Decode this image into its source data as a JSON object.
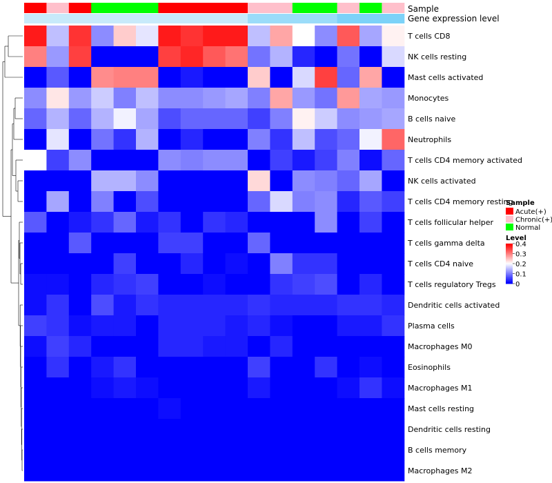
{
  "chart_data": {
    "type": "heatmap",
    "title": "",
    "annotation_labels": {
      "sample": "Sample",
      "expression": "Gene expression level"
    },
    "column_samples": [
      "Acute(+)",
      "Chronic(+)",
      "Acute(+)",
      "Normal",
      "Normal",
      "Normal",
      "Acute(+)",
      "Acute(+)",
      "Acute(+)",
      "Acute(+)",
      "Chronic(+)",
      "Chronic(+)",
      "Normal",
      "Normal",
      "Chronic(+)",
      "Normal",
      "Chronic(+)"
    ],
    "column_expression": [
      0.2,
      0.2,
      0.2,
      0.2,
      0.2,
      0.2,
      0.2,
      0.2,
      0.2,
      0.2,
      0.5,
      0.5,
      0.5,
      0.5,
      0.7,
      0.7,
      0.7
    ],
    "rows": [
      "T cells CD8",
      "NK cells resting",
      "Mast cells activated",
      "Monocytes",
      "B cells naive",
      "Neutrophils",
      "T cells CD4 memory activated",
      "NK cells activated",
      "T cells CD4 memory resting",
      "T cells follicular helper",
      "T cells gamma delta",
      "T cells CD4 naive",
      "T cells regulatory  Tregs",
      "Dendritic cells activated",
      "Plasma cells",
      "Macrophages M0",
      "Eosinophils",
      "Macrophages M1",
      "Mast cells resting",
      "Dendritic cells resting",
      "B cells memory",
      "Macrophages M2"
    ],
    "values": [
      [
        0.38,
        0.15,
        0.36,
        0.11,
        0.24,
        0.18,
        0.38,
        0.36,
        0.38,
        0.38,
        0.15,
        0.27,
        0.2,
        0.11,
        0.33,
        0.13,
        0.21
      ],
      [
        0.3,
        0.12,
        0.35,
        0.0,
        0.0,
        0.0,
        0.35,
        0.37,
        0.33,
        0.31,
        0.09,
        0.14,
        0.03,
        0.0,
        0.09,
        0.0,
        0.17
      ],
      [
        0.0,
        0.07,
        0.0,
        0.29,
        0.3,
        0.3,
        0.0,
        0.02,
        0.0,
        0.0,
        0.24,
        0.0,
        0.17,
        0.35,
        0.08,
        0.27,
        0.0
      ],
      [
        0.11,
        0.22,
        0.12,
        0.16,
        0.1,
        0.15,
        0.11,
        0.11,
        0.12,
        0.13,
        0.1,
        0.27,
        0.12,
        0.09,
        0.28,
        0.13,
        0.12
      ],
      [
        0.08,
        0.14,
        0.08,
        0.14,
        0.19,
        0.13,
        0.06,
        0.08,
        0.08,
        0.08,
        0.05,
        0.1,
        0.21,
        0.16,
        0.11,
        0.12,
        0.13
      ],
      [
        0.0,
        0.18,
        0.0,
        0.09,
        0.04,
        0.14,
        0.0,
        0.03,
        0.0,
        0.0,
        0.1,
        0.04,
        0.15,
        0.06,
        0.08,
        0.19,
        0.32
      ],
      [
        0.2,
        0.05,
        0.11,
        0.0,
        0.0,
        0.0,
        0.11,
        0.1,
        0.11,
        0.11,
        0.0,
        0.05,
        0.02,
        0.05,
        0.1,
        0.01,
        0.08
      ],
      [
        0.0,
        0.0,
        0.0,
        0.14,
        0.14,
        0.11,
        0.0,
        0.0,
        0.0,
        0.0,
        0.23,
        0.0,
        0.11,
        0.1,
        0.08,
        0.13,
        0.0
      ],
      [
        0.0,
        0.13,
        0.0,
        0.1,
        0.0,
        0.06,
        0.0,
        0.0,
        0.0,
        0.0,
        0.08,
        0.17,
        0.1,
        0.11,
        0.03,
        0.07,
        0.05
      ],
      [
        0.07,
        0.0,
        0.02,
        0.04,
        0.08,
        0.02,
        0.04,
        0.0,
        0.04,
        0.03,
        0.0,
        0.0,
        0.0,
        0.11,
        0.0,
        0.05,
        0.0
      ],
      [
        0.0,
        0.0,
        0.07,
        0.0,
        0.0,
        0.0,
        0.05,
        0.05,
        0.0,
        0.0,
        0.08,
        0.0,
        0.0,
        0.0,
        0.0,
        0.0,
        0.0
      ],
      [
        0.0,
        0.0,
        0.0,
        0.0,
        0.05,
        0.0,
        0.0,
        0.03,
        0.0,
        0.01,
        0.0,
        0.1,
        0.04,
        0.04,
        0.0,
        0.0,
        0.0
      ],
      [
        0.01,
        0.01,
        0.0,
        0.03,
        0.04,
        0.05,
        0.0,
        0.0,
        0.01,
        0.0,
        0.0,
        0.04,
        0.05,
        0.06,
        0.0,
        0.03,
        0.0
      ],
      [
        0.01,
        0.04,
        0.0,
        0.06,
        0.02,
        0.04,
        0.03,
        0.03,
        0.03,
        0.03,
        0.04,
        0.03,
        0.03,
        0.03,
        0.04,
        0.04,
        0.03
      ],
      [
        0.05,
        0.04,
        0.01,
        0.02,
        0.02,
        0.0,
        0.03,
        0.03,
        0.03,
        0.02,
        0.03,
        0.01,
        0.0,
        0.0,
        0.02,
        0.02,
        0.04
      ],
      [
        0.01,
        0.05,
        0.03,
        0.0,
        0.0,
        0.0,
        0.03,
        0.03,
        0.02,
        0.02,
        0.0,
        0.03,
        0.0,
        0.0,
        0.0,
        0.0,
        0.0
      ],
      [
        0.0,
        0.04,
        0.0,
        0.02,
        0.04,
        0.0,
        0.0,
        0.0,
        0.0,
        0.0,
        0.05,
        0.0,
        0.0,
        0.04,
        0.0,
        0.01,
        0.0
      ],
      [
        0.0,
        0.0,
        0.0,
        0.01,
        0.02,
        0.01,
        0.0,
        0.0,
        0.0,
        0.0,
        0.02,
        0.0,
        0.0,
        0.0,
        0.01,
        0.04,
        0.01
      ],
      [
        0.0,
        0.0,
        0.0,
        0.0,
        0.0,
        0.0,
        0.01,
        0.0,
        0.0,
        0.0,
        0.0,
        0.0,
        0.0,
        0.0,
        0.0,
        0.0,
        0.0
      ],
      [
        0.0,
        0.0,
        0.0,
        0.0,
        0.0,
        0.0,
        0.0,
        0.0,
        0.0,
        0.0,
        0.0,
        0.0,
        0.0,
        0.0,
        0.0,
        0.0,
        0.0
      ],
      [
        0.0,
        0.0,
        0.0,
        0.0,
        0.0,
        0.0,
        0.0,
        0.0,
        0.0,
        0.0,
        0.0,
        0.0,
        0.0,
        0.0,
        0.0,
        0.0,
        0.0
      ],
      [
        0.0,
        0.0,
        0.0,
        0.0,
        0.0,
        0.0,
        0.0,
        0.0,
        0.0,
        0.0,
        0.0,
        0.0,
        0.0,
        0.0,
        0.0,
        0.0,
        0.0
      ]
    ],
    "legend": {
      "sample_title": "Sample",
      "sample_entries": [
        {
          "label": "Acute(+)",
          "color": "#ff0000"
        },
        {
          "label": "Chronic(+)",
          "color": "#ffc0cb"
        },
        {
          "label": "Normal",
          "color": "#00ff00"
        }
      ],
      "level_title": "Level",
      "level_ticks": [
        "0.4",
        "0.3",
        "0.2",
        "0.1",
        "0"
      ],
      "level_tick_values": [
        0.4,
        0.3,
        0.2,
        0.1,
        0
      ],
      "position": "right"
    },
    "colorscale": {
      "low": "#0000ff",
      "mid": "#ffffff",
      "high": "#ff0000",
      "min": 0,
      "mid_value": 0.2,
      "max": 0.4
    },
    "expression_colors": {
      "low": "#e6f4fb",
      "high": "#4fc3f7"
    },
    "dendrogram": "row clustering tree on the left"
  }
}
